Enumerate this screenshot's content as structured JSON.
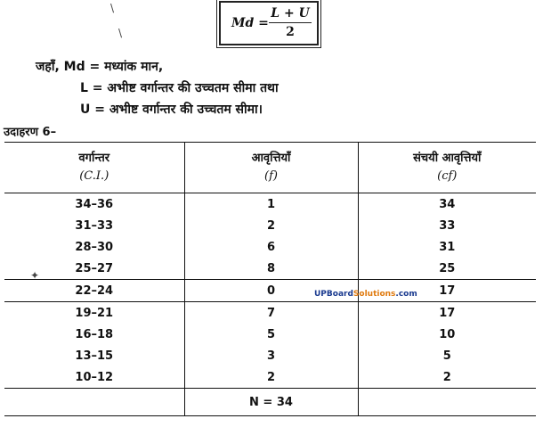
{
  "formula": {
    "lhs": "Md =",
    "numerator": "L + U",
    "denominator": "2"
  },
  "definitions": {
    "line1": "जहाँ, Md = मध्यांक मान,",
    "line2": "L = अभीष्ट वर्गान्तर की उच्चतम सीमा तथा",
    "line3": "U = अभीष्ट वर्गान्तर की उच्चतम सीमा।"
  },
  "example_heading": "उदाहरण 6–",
  "table": {
    "headers": [
      {
        "label": "वर्गान्तर",
        "sub": "(C.I.)"
      },
      {
        "label": "आवृत्तियाँ",
        "sub": "(f)"
      },
      {
        "label": "संचयी आवृत्तियाँ",
        "sub": "(cf)"
      }
    ],
    "rows": [
      [
        "34–36",
        "1",
        "34"
      ],
      [
        "31–33",
        "2",
        "33"
      ],
      [
        "28–30",
        "6",
        "31"
      ],
      [
        "25–27",
        "8",
        "25"
      ],
      [
        "22–24",
        "0",
        "17"
      ],
      [
        "19–21",
        "7",
        "17"
      ],
      [
        "16–18",
        "5",
        "10"
      ],
      [
        "13–15",
        "3",
        "5"
      ],
      [
        "10–12",
        "2",
        "2"
      ]
    ],
    "total": "N = 34"
  },
  "watermark": {
    "part1": "UPBoard",
    "part2": "Solutions",
    "part3": ".com"
  }
}
